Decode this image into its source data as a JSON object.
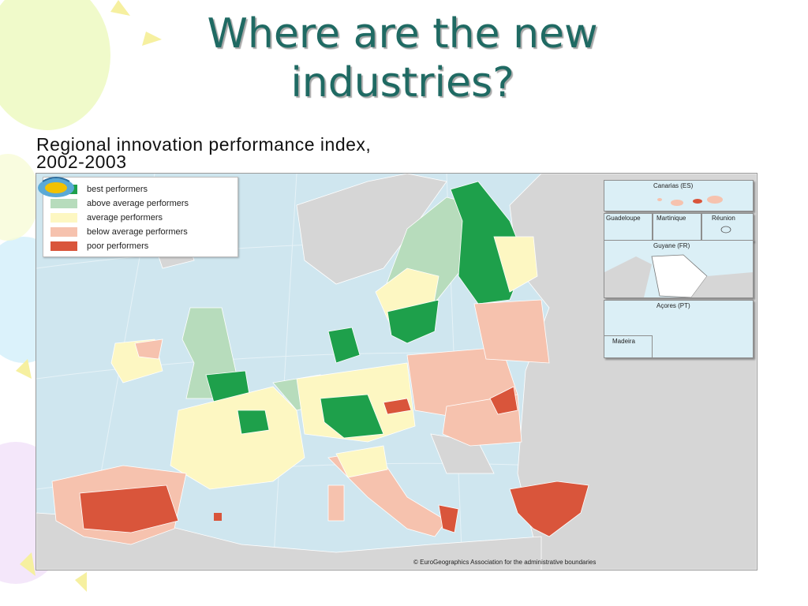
{
  "slide": {
    "title_line1": "Where are the new",
    "title_line2": "industries?"
  },
  "map": {
    "title_line1": "Regional innovation performance index,",
    "title_line2": "2002-2003",
    "legend": [
      {
        "label": "best performers",
        "color": "#1ea04b"
      },
      {
        "label": "above average performers",
        "color": "#b7dcbc"
      },
      {
        "label": "average performers",
        "color": "#fdf7c2"
      },
      {
        "label": "below average performers",
        "color": "#f6c2ae"
      },
      {
        "label": "poor performers",
        "color": "#d9553b"
      }
    ],
    "non_eu_color": "#d6d6d6",
    "sea_color": "#cfe6ef",
    "insets": {
      "canarias": "Canarias (ES)",
      "guadeloupe": "Guadeloupe",
      "martinique": "Martinique",
      "reunion": "Réunion",
      "guyane": "Guyane (FR)",
      "acores": "Açores (PT)",
      "madeira": "Madeira"
    },
    "copyright": "© EuroGeographics Association for the administrative boundaries"
  }
}
